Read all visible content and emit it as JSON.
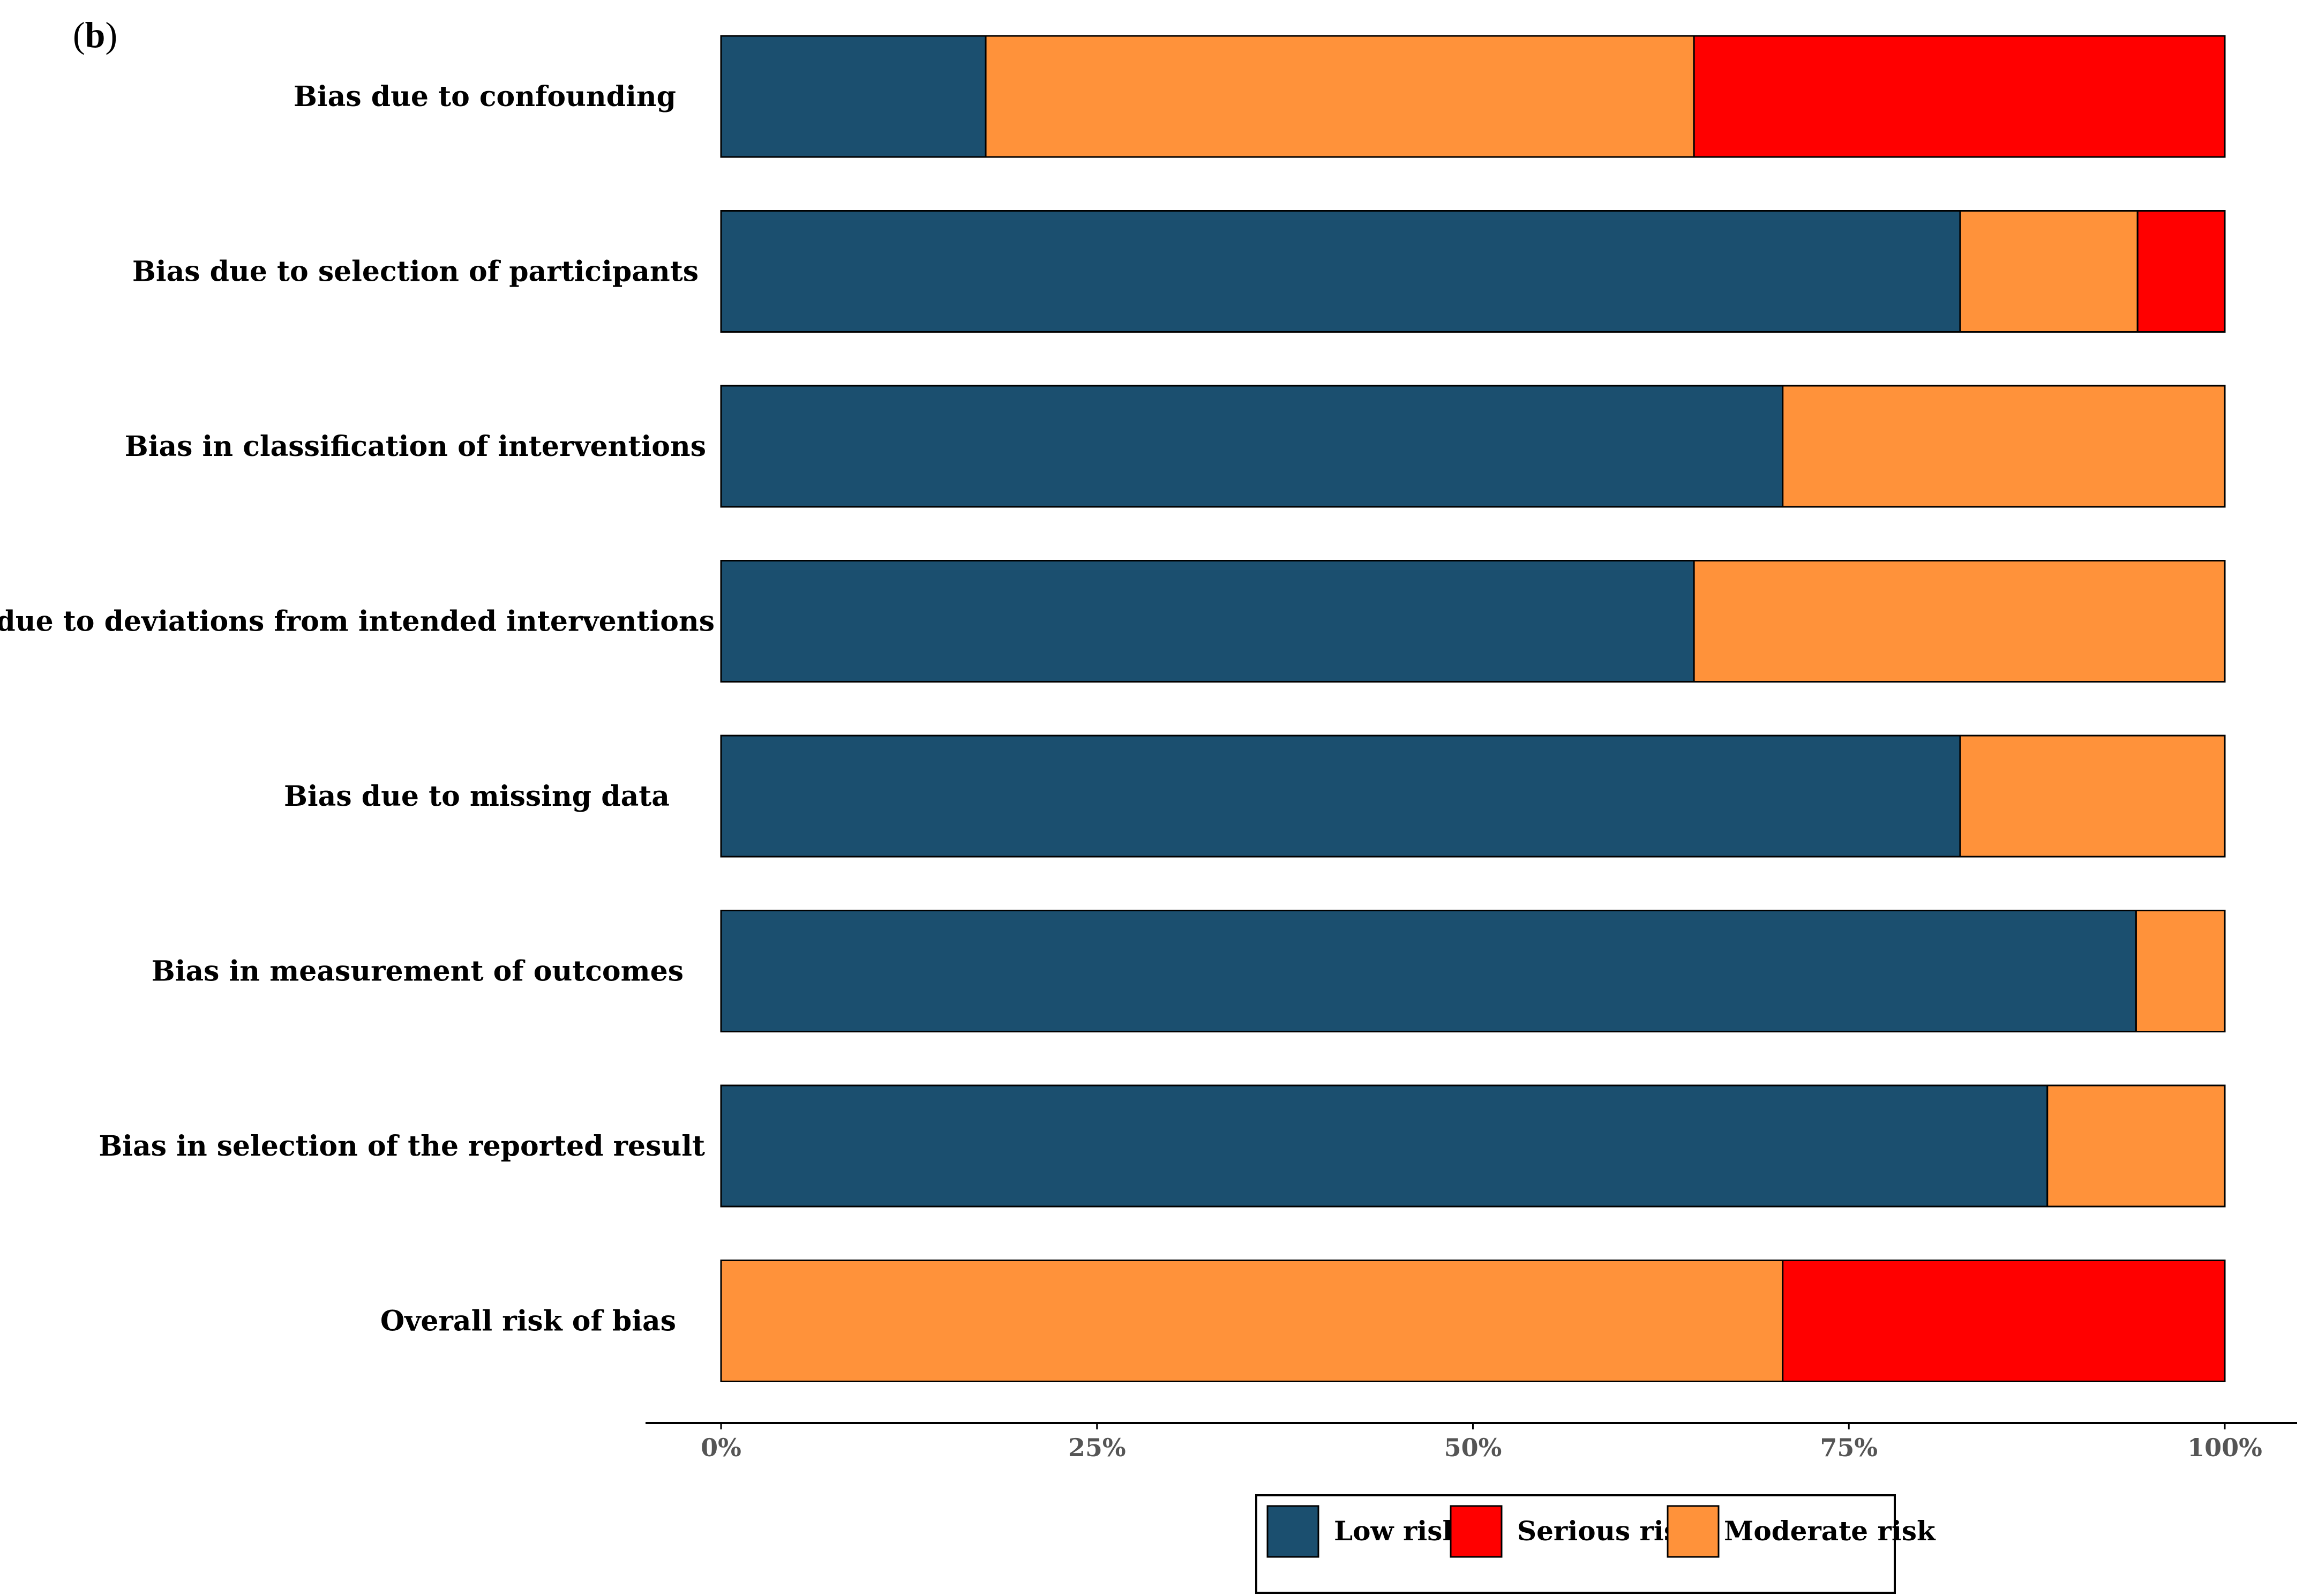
{
  "panel_label": {
    "open": "(",
    "letter": "b",
    "close": ")"
  },
  "chart_data": {
    "type": "bar",
    "orientation": "horizontal",
    "stacked": true,
    "title": "",
    "xlabel": "",
    "ylabel": "",
    "xlim": [
      0,
      100
    ],
    "x_tick_values": [
      0,
      25,
      50,
      75,
      100
    ],
    "x_tick_labels": [
      "0%",
      "25%",
      "50%",
      "75%",
      "100%"
    ],
    "categories": [
      "Bias due to confounding",
      "Bias due to selection of participants",
      "Bias in classification of interventions",
      "Bias due to deviations from intended interventions",
      "Bias due to missing data",
      "Bias in measurement of outcomes",
      "Bias in selection of the reported result",
      "Overall risk of bias"
    ],
    "series": [
      {
        "name": "Low risk",
        "color": "#1B4F6F",
        "values": [
          17.6,
          82.4,
          70.6,
          64.7,
          82.4,
          94.1,
          88.2,
          0
        ]
      },
      {
        "name": "Moderate risk",
        "color": "#FF923A",
        "values": [
          47.1,
          11.8,
          29.4,
          35.3,
          17.6,
          5.9,
          11.8,
          70.6
        ]
      },
      {
        "name": "Serious risk",
        "color": "#FF0000",
        "values": [
          35.3,
          5.8,
          0,
          0,
          0,
          0,
          0,
          29.4
        ]
      }
    ],
    "legend": {
      "position": "bottom-center",
      "order": [
        "Low risk",
        "Serious risk",
        "Moderate risk"
      ]
    },
    "grid": false
  }
}
